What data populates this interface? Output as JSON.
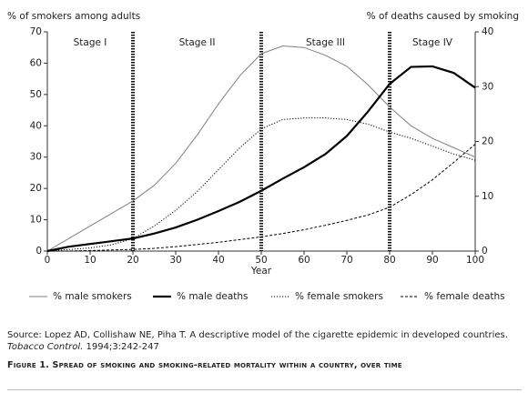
{
  "chart_data": {
    "type": "line",
    "y_label": "% of smokers among adults",
    "y2_label": "% of deaths caused by smoking",
    "x_label": "Year",
    "x": [
      0,
      5,
      10,
      15,
      20,
      25,
      30,
      35,
      40,
      45,
      50,
      55,
      60,
      65,
      70,
      75,
      80,
      85,
      90,
      95,
      100
    ],
    "series": [
      {
        "name": "% male smokers",
        "color": "#808080",
        "dash": "solid",
        "width": 1,
        "values": [
          0,
          4,
          8,
          12,
          16,
          21,
          28,
          37,
          47,
          56,
          63,
          65.5,
          65,
          62.5,
          59,
          53,
          46,
          40,
          36,
          33,
          30
        ]
      },
      {
        "name": "% male deaths",
        "color": "#000000",
        "dash": "solid",
        "width": 2.2,
        "axis": "y2",
        "values": [
          0,
          0.8,
          1.3,
          1.8,
          2.3,
          3.2,
          4.3,
          5.7,
          7.3,
          9,
          11,
          13.2,
          15.3,
          17.7,
          21,
          25.5,
          30.5,
          33.6,
          33.7,
          32.5,
          29.8
        ]
      },
      {
        "name": "% female smokers",
        "color": "#000000",
        "dash": "dotted",
        "width": 1,
        "values": [
          0,
          0.5,
          1,
          2,
          4,
          8,
          13,
          19,
          26,
          33,
          39,
          42,
          42.5,
          42.5,
          42,
          40.5,
          38,
          36,
          33.5,
          31,
          29
        ]
      },
      {
        "name": "% female deaths",
        "color": "#000000",
        "dash": "dashed",
        "width": 1,
        "axis": "y2",
        "values": [
          0,
          0,
          0.1,
          0.2,
          0.3,
          0.5,
          0.8,
          1.2,
          1.6,
          2.1,
          2.6,
          3.2,
          3.9,
          4.7,
          5.6,
          6.6,
          8,
          10.3,
          13,
          16.2,
          19.5
        ]
      }
    ],
    "stages": [
      "Stage I",
      "Stage II",
      "Stage III",
      "Stage IV"
    ],
    "stage_boundaries": [
      20,
      50,
      80
    ],
    "xlim": [
      0,
      100
    ],
    "xticks": [
      0,
      10,
      20,
      30,
      40,
      50,
      60,
      70,
      80,
      90,
      100
    ],
    "ylim": [
      0,
      70
    ],
    "yticks": [
      0,
      10,
      20,
      30,
      40,
      50,
      60,
      70
    ],
    "y2lim": [
      0,
      40
    ],
    "y2ticks": [
      0,
      10,
      20,
      30,
      40
    ],
    "grid": false
  },
  "source": {
    "text": "Source: Lopez AD, Collishaw NE, Piha T. A descriptive model of the cigarette epidemic in developed countries.",
    "journal": "Tobacco Control.",
    "citation": "1994;3:242-247"
  },
  "caption": "Figure 1. Spread of smoking and smoking-related mortality within a country, over time"
}
